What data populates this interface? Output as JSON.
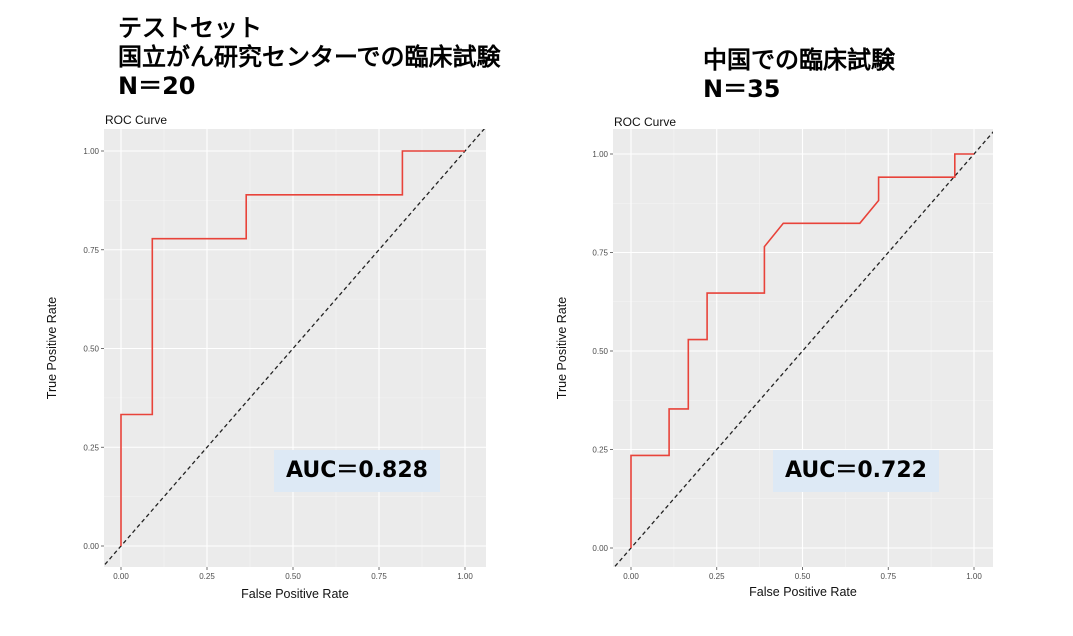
{
  "headings": {
    "left": [
      "テストセット",
      "国立がん研究センターでの臨床試験",
      "N＝20"
    ],
    "right": [
      "中国での臨床試験",
      "N＝35"
    ]
  },
  "chart_data": [
    {
      "type": "line",
      "title": "ROC Curve",
      "xlabel": "False Positive Rate",
      "ylabel": "True Positive Rate",
      "xlim": [
        0,
        1
      ],
      "ylim": [
        0,
        1
      ],
      "xticks": [
        "0.00",
        "0.25",
        "0.50",
        "0.75",
        "1.00"
      ],
      "yticks": [
        "0.00",
        "0.25",
        "0.50",
        "0.75",
        "1.00"
      ],
      "grid": true,
      "series": [
        {
          "color": "#e8433a",
          "x": [
            0,
            0,
            0.091,
            0.091,
            0.364,
            0.364,
            0.818,
            0.818,
            1.0
          ],
          "y": [
            0,
            0.333,
            0.333,
            0.778,
            0.778,
            0.889,
            0.889,
            1.0,
            1.0
          ]
        }
      ],
      "diagonal": true,
      "annotation": "AUC＝0.828"
    },
    {
      "type": "line",
      "title": "ROC Curve",
      "xlabel": "False Positive Rate",
      "ylabel": "True Positive Rate",
      "xlim": [
        0,
        1
      ],
      "ylim": [
        0,
        1
      ],
      "xticks": [
        "0.00",
        "0.25",
        "0.50",
        "0.75",
        "1.00"
      ],
      "yticks": [
        "0.00",
        "0.25",
        "0.50",
        "0.75",
        "1.00"
      ],
      "grid": true,
      "series": [
        {
          "color": "#e8433a",
          "x": [
            0,
            0,
            0.111,
            0.111,
            0.167,
            0.167,
            0.222,
            0.222,
            0.389,
            0.389,
            0.444,
            0.667,
            0.722,
            0.722,
            0.944,
            0.944,
            1.0
          ],
          "y": [
            0,
            0.235,
            0.235,
            0.353,
            0.353,
            0.529,
            0.529,
            0.647,
            0.647,
            0.765,
            0.824,
            0.824,
            0.882,
            0.941,
            0.941,
            1.0,
            1.0
          ]
        }
      ],
      "diagonal": true,
      "annotation": "AUC＝0.722"
    }
  ]
}
